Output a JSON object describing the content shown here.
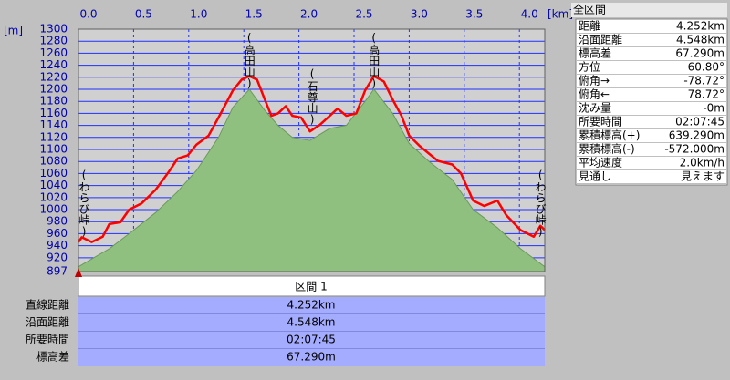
{
  "chart_data": {
    "type": "profile",
    "xlabel": "[km]",
    "ylabel": "[m]",
    "xlim": [
      0,
      4.23
    ],
    "ylim": [
      897,
      1300
    ],
    "xticks": [
      {
        "value": 0,
        "label": "0.0"
      },
      0.5,
      {
        "value": 1,
        "label": "1.0"
      },
      1.5,
      {
        "value": 2,
        "label": "2.0"
      },
      2.5,
      {
        "value": 3,
        "label": "3.0"
      },
      3.5,
      {
        "value": 4,
        "label": "4.0"
      }
    ],
    "yticks": [
      897,
      920,
      940,
      960,
      980,
      1000,
      1020,
      1040,
      1060,
      1080,
      1100,
      1120,
      1140,
      1160,
      1180,
      1200,
      1220,
      1240,
      1260,
      1280,
      1300
    ],
    "grid": true,
    "series": [
      {
        "color": "#ff0000",
        "x": [
          0,
          0.03,
          0.12,
          0.22,
          0.28,
          0.38,
          0.46,
          0.57,
          0.7,
          0.82,
          0.9,
          0.99,
          1.07,
          1.18,
          1.27,
          1.4,
          1.48,
          1.55,
          1.62,
          1.69,
          1.75,
          1.81,
          1.88,
          1.94,
          2.02,
          2.1,
          2.19,
          2.28,
          2.35,
          2.43,
          2.52,
          2.6,
          2.68,
          2.77,
          2.85,
          2.93,
          3.0,
          3.1,
          3.18,
          3.26,
          3.39,
          3.47,
          3.58,
          3.68,
          3.8,
          3.88,
          4.01,
          4.13,
          4.19,
          4.23
        ],
        "values": [
          946,
          954,
          946,
          955,
          976,
          979,
          1000,
          1010,
          1033,
          1063,
          1085,
          1090,
          1108,
          1123,
          1153,
          1198,
          1216,
          1222,
          1216,
          1183,
          1156,
          1160,
          1172,
          1156,
          1153,
          1130,
          1141,
          1156,
          1168,
          1156,
          1160,
          1198,
          1222,
          1213,
          1183,
          1156,
          1123,
          1105,
          1093,
          1081,
          1075,
          1060,
          1015,
          1006,
          1015,
          991,
          966,
          955,
          973,
          966
        ]
      },
      {
        "color": "#8fc07f",
        "x": [
          0,
          0.12,
          0.28,
          0.46,
          0.7,
          0.9,
          1.07,
          1.27,
          1.4,
          1.55,
          1.69,
          1.81,
          1.94,
          2.1,
          2.28,
          2.43,
          2.6,
          2.68,
          2.85,
          3.0,
          3.18,
          3.39,
          3.58,
          3.8,
          4.01,
          4.23
        ],
        "values": [
          905,
          918,
          935,
          960,
          995,
          1030,
          1065,
          1120,
          1170,
          1200,
          1165,
          1140,
          1120,
          1115,
          1135,
          1140,
          1180,
          1200,
          1160,
          1110,
          1080,
          1050,
          1000,
          970,
          935,
          905
        ]
      }
    ],
    "annotations": [
      {
        "text": "(わらび峠)",
        "x": 0.05,
        "y": 1068
      },
      {
        "text": "(高田山)",
        "x": 1.55,
        "y": 1296
      },
      {
        "text": "(石尊山)",
        "x": 2.12,
        "y": 1236
      },
      {
        "text": "(高田山)",
        "x": 2.68,
        "y": 1296
      },
      {
        "text": "(わらび峠)",
        "x": 4.19,
        "y": 1068
      }
    ]
  },
  "section": {
    "title": "区間 1",
    "rows": [
      [
        "直線距離",
        "4.252km"
      ],
      [
        "沿面距離",
        "4.548km"
      ],
      [
        "所要時間",
        "02:07:45"
      ],
      [
        "標高差",
        "67.290m"
      ]
    ]
  },
  "summary": {
    "title": "全区間",
    "rows": [
      [
        "距離",
        "4.252km"
      ],
      [
        "沿面距離",
        "4.548km"
      ],
      [
        "標高差",
        "67.290m"
      ],
      [
        "方位",
        "60.80°"
      ],
      [
        "俯角→",
        "-78.72°"
      ],
      [
        "俯角←",
        "78.72°"
      ],
      [
        "沈み量",
        "-0m"
      ],
      [
        "所要時間",
        "02:07:45"
      ],
      [
        "累積標高(+)",
        "639.290m"
      ],
      [
        "累積標高(-)",
        "-572.000m"
      ],
      [
        "平均速度",
        "2.0km/h"
      ],
      [
        "見通し",
        "見えます"
      ]
    ]
  }
}
